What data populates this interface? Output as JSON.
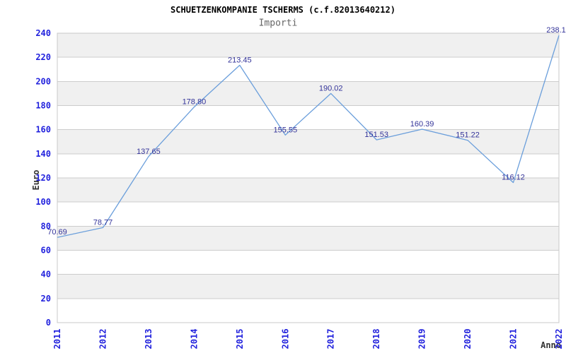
{
  "chart_data": {
    "type": "line",
    "title": "SCHUETZENKOMPANIE TSCHERMS (c.f.82013640212)",
    "subtitle": "Importi",
    "xlabel": "Anno",
    "ylabel": "Euro",
    "categories": [
      "2011",
      "2012",
      "2013",
      "2014",
      "2015",
      "2016",
      "2017",
      "2018",
      "2019",
      "2020",
      "2021",
      "2022"
    ],
    "series": [
      {
        "name": "Importi",
        "values": [
          70.69,
          78.77,
          137.65,
          178.8,
          213.45,
          155.55,
          190.02,
          151.53,
          160.39,
          151.22,
          116.12,
          238.1
        ],
        "point_labels": [
          "70.69",
          "78.77",
          "137.65",
          "178.80",
          "213.45",
          "155.55",
          "190.02",
          "151.53",
          "160.39",
          "151.22",
          "116.12",
          "238.1"
        ]
      }
    ],
    "ylim": [
      0,
      240
    ],
    "ytick_step": 20,
    "ytick_labels": [
      "0",
      "20",
      "40",
      "60",
      "80",
      "100",
      "120",
      "140",
      "160",
      "180",
      "200",
      "220",
      "240"
    ],
    "legend": "none",
    "grid": "horizontal gridlines with alternating gray bands",
    "x_tick_rotation": -90,
    "colors": {
      "line": "#6a9edb",
      "point_label": "#333399",
      "tick_label": "#2222dd",
      "axis_label": "#333333",
      "title": "#000000",
      "subtitle": "#666666",
      "band": "#f0f0f0",
      "gridline": "#cccccc",
      "plot_border": "#c8c8c8",
      "background": "#ffffff"
    }
  }
}
